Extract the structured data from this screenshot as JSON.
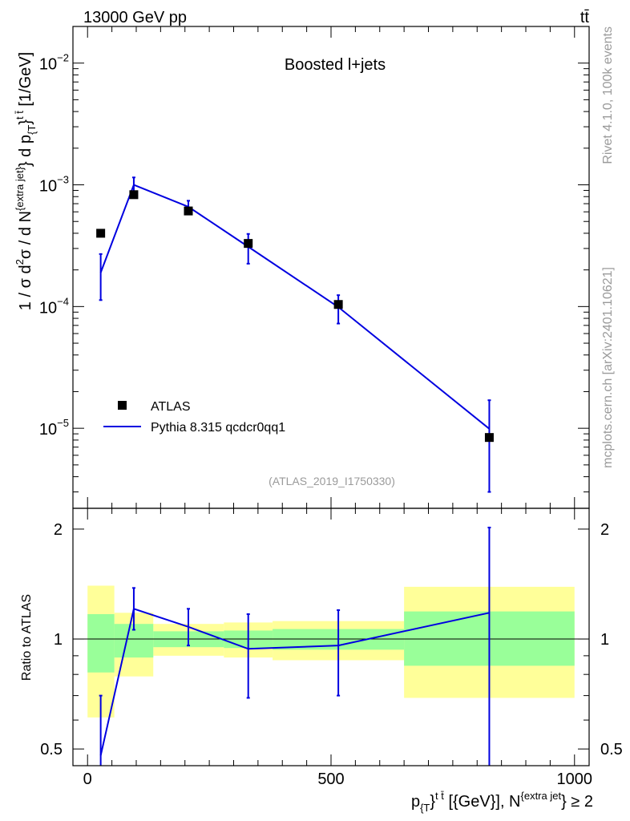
{
  "header": {
    "left": "13000 GeV pp",
    "right": "tt̄"
  },
  "side_text": {
    "rivet": "Rivet 4.1.0,  100k events",
    "mcplots": "mcplots.cern.ch [arXiv:2401.10621]"
  },
  "chart_data": [
    {
      "type": "line",
      "panel": "main",
      "title": "Boosted l+jets",
      "watermark": "(ATLAS_2019_I1750330)",
      "ylabel": {
        "prefix": "1 / σ d",
        "sup1": "2",
        "mid1": "σ /  d N",
        "sup2": "{extra jet}",
        "mid2": "} d p",
        "sub1": "{T",
        "mid3": "}",
        "sup3": "t t̄",
        "unit": " [1/GeV]"
      },
      "yscale": "log",
      "ylim": [
        2.2e-06,
        0.02
      ],
      "xlim": [
        -30,
        1030
      ],
      "y_ticks": [
        {
          "value": 1e-05,
          "mant": "10",
          "exp": "−5"
        },
        {
          "value": 0.0001,
          "mant": "10",
          "exp": "−4"
        },
        {
          "value": 0.001,
          "mant": "10",
          "exp": "−3"
        },
        {
          "value": 0.01,
          "mant": "10",
          "exp": "−2"
        }
      ],
      "legend": {
        "position": "bottom-left",
        "entries": [
          {
            "label": "ATLAS",
            "marker": "square",
            "color": "#000000"
          },
          {
            "label": "Pythia 8.315 qcdcr0qq1",
            "marker": "line",
            "color": "#0000e0"
          }
        ]
      },
      "series": [
        {
          "name": "ATLAS",
          "color": "#000000",
          "points": [
            {
              "x": 27,
              "y": 0.0004
            },
            {
              "x": 95,
              "y": 0.00083
            },
            {
              "x": 207,
              "y": 0.00061
            },
            {
              "x": 330,
              "y": 0.00033
            },
            {
              "x": 515,
              "y": 0.000104
            },
            {
              "x": 825,
              "y": 8.4e-06
            }
          ]
        },
        {
          "name": "Pythia 8.315 qcdcr0qq1",
          "color": "#0000e0",
          "points": [
            {
              "x": 27,
              "y": 0.00019,
              "lo": 0.000113,
              "hi": 0.00027
            },
            {
              "x": 95,
              "y": 0.001,
              "lo": 0.00088,
              "hi": 0.00115
            },
            {
              "x": 207,
              "y": 0.00066,
              "lo": 0.00059,
              "hi": 0.00074
            },
            {
              "x": 330,
              "y": 0.00031,
              "lo": 0.000225,
              "hi": 0.000395
            },
            {
              "x": 515,
              "y": 9.9e-05,
              "lo": 7.25e-05,
              "hi": 0.000124
            },
            {
              "x": 825,
              "y": 9.9e-06,
              "lo": 3e-06,
              "hi": 1.7e-05
            }
          ]
        }
      ]
    },
    {
      "type": "line",
      "panel": "ratio",
      "ylabel": "Ratio to ATLAS",
      "yscale": "log",
      "ylim": [
        0.45,
        2.28
      ],
      "xlim": [
        -30,
        1030
      ],
      "y_ticks": [
        {
          "value": 0.5,
          "label": "0.5"
        },
        {
          "value": 1,
          "label": "1"
        },
        {
          "value": 2,
          "label": "2"
        }
      ],
      "x_ticks": [
        {
          "value": 0,
          "label": "0"
        },
        {
          "value": 500,
          "label": "500"
        },
        {
          "value": 1000,
          "label": "1000"
        }
      ],
      "xlabel": {
        "p": "p",
        "sub": "{T",
        "mid": "}",
        "sup": "t t̄",
        "rest": " [{GeV}], N",
        "sup2": "{extra jet",
        "end": "} ≥ 2"
      },
      "reference_line": 1,
      "bands": [
        {
          "x0": 0,
          "x1": 55,
          "yellow": [
            0.61,
            1.4
          ],
          "green": [
            0.81,
            1.17
          ]
        },
        {
          "x0": 55,
          "x1": 135,
          "yellow": [
            0.79,
            1.18
          ],
          "green": [
            0.89,
            1.1
          ]
        },
        {
          "x0": 135,
          "x1": 280,
          "yellow": [
            0.9,
            1.1
          ],
          "green": [
            0.95,
            1.05
          ]
        },
        {
          "x0": 280,
          "x1": 380,
          "yellow": [
            0.89,
            1.11
          ],
          "green": [
            0.945,
            1.055
          ]
        },
        {
          "x0": 380,
          "x1": 650,
          "yellow": [
            0.875,
            1.12
          ],
          "green": [
            0.935,
            1.065
          ]
        },
        {
          "x0": 650,
          "x1": 1000,
          "yellow": [
            0.69,
            1.39
          ],
          "green": [
            0.845,
            1.19
          ]
        }
      ],
      "series": [
        {
          "name": "Pythia 8.315 qcdcr0qq1 / ATLAS",
          "color": "#0000e0",
          "points": [
            {
              "x": 27,
              "y": 0.48,
              "lo": 0.3,
              "hi": 0.7
            },
            {
              "x": 95,
              "y": 1.21,
              "lo": 1.06,
              "hi": 1.38
            },
            {
              "x": 207,
              "y": 1.08,
              "lo": 0.96,
              "hi": 1.21
            },
            {
              "x": 330,
              "y": 0.94,
              "lo": 0.69,
              "hi": 1.17
            },
            {
              "x": 515,
              "y": 0.96,
              "lo": 0.7,
              "hi": 1.2
            },
            {
              "x": 825,
              "y": 1.18,
              "lo": 0.3,
              "hi": 2.02
            }
          ]
        }
      ]
    }
  ]
}
